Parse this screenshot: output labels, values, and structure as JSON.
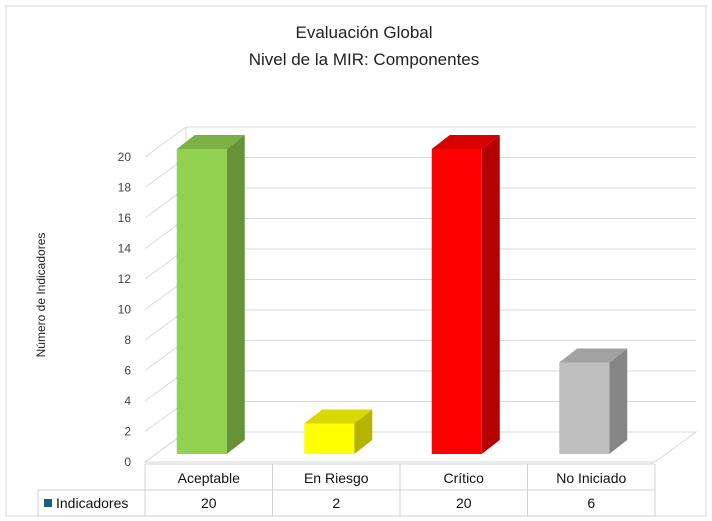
{
  "chart_data": {
    "type": "bar",
    "title": "Evaluación Global",
    "subtitle": "Nivel de la MIR: Componentes",
    "xlabel": "",
    "ylabel": "Número de Indicadores",
    "categories": [
      "Aceptable",
      "En Riesgo",
      "Crítico",
      "No Iniciado"
    ],
    "series": [
      {
        "name": "Indicadores",
        "values": [
          20,
          2,
          20,
          6
        ]
      }
    ],
    "value_labels": [
      "20",
      "2",
      "20",
      "6"
    ],
    "ylim": [
      0,
      20
    ],
    "yticks": [
      0,
      2,
      4,
      6,
      8,
      10,
      12,
      14,
      16,
      18,
      20
    ],
    "bar_colors": [
      "#92d050",
      "#ffff00",
      "#ff0000",
      "#bfbfbf"
    ],
    "legend_marker_color": "#1f5c80",
    "grid": true,
    "style": "3d-column",
    "data_table": true
  }
}
